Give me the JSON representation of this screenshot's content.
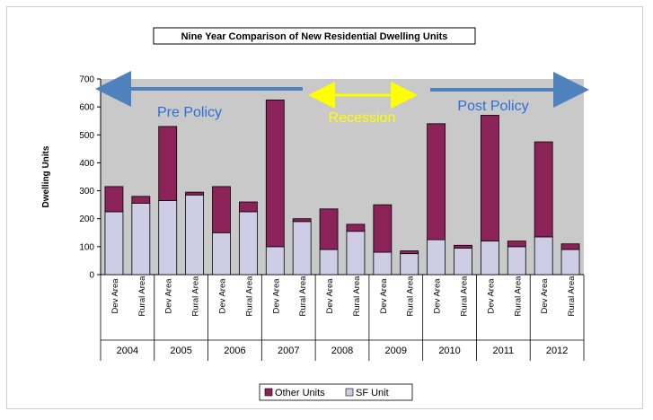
{
  "chart_data": {
    "type": "bar",
    "stacked": true,
    "title": "Nine Year Comparison of New Residential Dwelling Units",
    "ylabel": "Dwelling Units",
    "xlabel": "",
    "ylim": [
      0,
      700
    ],
    "yticks": [
      0,
      100,
      200,
      300,
      400,
      500,
      600,
      700
    ],
    "groups": [
      "2004",
      "2005",
      "2006",
      "2007",
      "2008",
      "2009",
      "2010",
      "2011",
      "2012"
    ],
    "categories": [
      "Dev Area",
      "Rural Area",
      "Dev Area",
      "Rural Area",
      "Dev Area",
      "Rural Area",
      "Dev Area",
      "Rural Area",
      "Dev Area",
      "Rural Area",
      "Dev Area",
      "Rural Area",
      "Dev Area",
      "Rural Area",
      "Dev Area",
      "Rural Area",
      "Dev Area",
      "Rural Area"
    ],
    "series": [
      {
        "name": "SF Unit",
        "color": "#cfcde6",
        "values": [
          225,
          255,
          265,
          285,
          150,
          225,
          100,
          190,
          90,
          155,
          80,
          75,
          125,
          95,
          120,
          100,
          135,
          90
        ]
      },
      {
        "name": "Other Units",
        "color": "#8b2358",
        "values": [
          90,
          25,
          265,
          10,
          165,
          35,
          525,
          10,
          145,
          25,
          170,
          10,
          415,
          10,
          450,
          20,
          340,
          20
        ]
      }
    ],
    "grid": false,
    "legend_position": "bottom",
    "annotations": [
      {
        "label": "Pre Policy",
        "color": "#2a6fd6"
      },
      {
        "label": "Recession",
        "color": "#ffff00"
      },
      {
        "label": "Post Policy",
        "color": "#2a6fd6"
      }
    ],
    "colors": {
      "plot_background": "#c9c9c9",
      "arrow_blue": "#4f81bd",
      "arrow_yellow": "#ffff00"
    }
  }
}
